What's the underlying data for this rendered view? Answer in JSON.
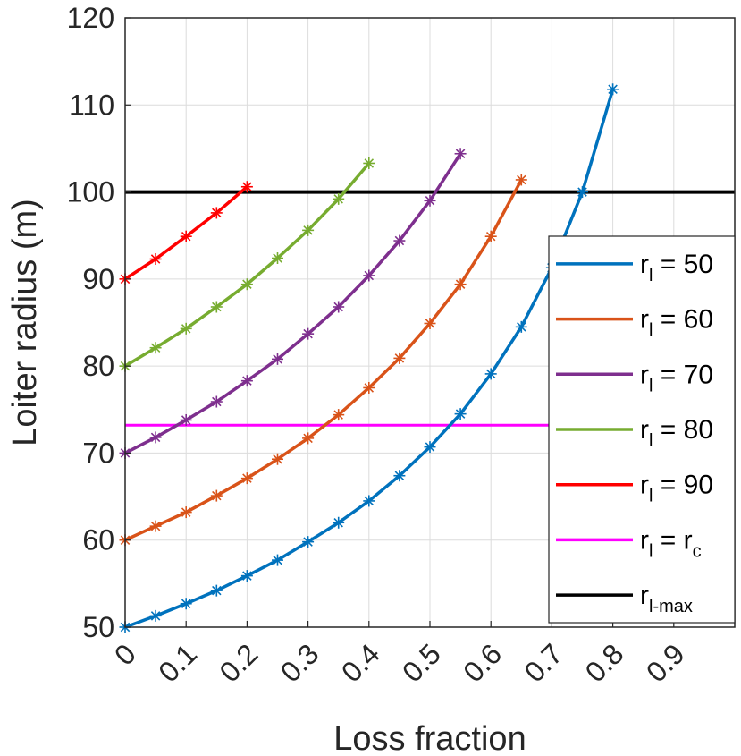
{
  "chart_data": {
    "type": "line",
    "xlabel": "Loss fraction",
    "ylabel": "Loiter radius (m)",
    "xlim": [
      0,
      1
    ],
    "ylim": [
      50,
      120
    ],
    "xticks": [
      "0",
      "0.1",
      "0.2",
      "0.3",
      "0.4",
      "0.5",
      "0.6",
      "0.7",
      "0.8",
      "0.9"
    ],
    "yticks": [
      "50",
      "60",
      "70",
      "80",
      "90",
      "100",
      "110",
      "120"
    ],
    "grid": true,
    "legend_position": "right",
    "marker": "asterisk",
    "series": [
      {
        "name": "r_l = 50",
        "legend_main": "r",
        "legend_sub": "l",
        "legend_rest": " = 50",
        "color": "#0072BD",
        "x": [
          0,
          0.05,
          0.1,
          0.15,
          0.2,
          0.25,
          0.3,
          0.35,
          0.4,
          0.45,
          0.5,
          0.55,
          0.6,
          0.65,
          0.7,
          0.75,
          0.8
        ],
        "y": [
          50,
          51.3,
          52.7,
          54.2,
          55.9,
          57.7,
          59.8,
          62.0,
          64.5,
          67.4,
          70.7,
          74.5,
          79.1,
          84.5,
          91.3,
          100.0,
          111.8
        ]
      },
      {
        "name": "r_l = 60",
        "legend_main": "r",
        "legend_sub": "l",
        "legend_rest": " = 60",
        "color": "#D95319",
        "x": [
          0,
          0.05,
          0.1,
          0.15,
          0.2,
          0.25,
          0.3,
          0.35,
          0.4,
          0.45,
          0.5,
          0.55,
          0.6,
          0.65
        ],
        "y": [
          60,
          61.6,
          63.2,
          65.1,
          67.1,
          69.3,
          71.7,
          74.4,
          77.5,
          80.9,
          84.9,
          89.4,
          94.9,
          101.4
        ]
      },
      {
        "name": "r_l = 70",
        "legend_main": "r",
        "legend_sub": "l",
        "legend_rest": " = 70",
        "color": "#7E2F8E",
        "x": [
          0,
          0.05,
          0.1,
          0.15,
          0.2,
          0.25,
          0.3,
          0.35,
          0.4,
          0.45,
          0.5,
          0.55
        ],
        "y": [
          70,
          71.8,
          73.8,
          75.9,
          78.3,
          80.8,
          83.7,
          86.8,
          90.4,
          94.4,
          99.0,
          104.4
        ]
      },
      {
        "name": "r_l = 80",
        "legend_main": "r",
        "legend_sub": "l",
        "legend_rest": " = 80",
        "color": "#77AC30",
        "x": [
          0,
          0.05,
          0.1,
          0.15,
          0.2,
          0.25,
          0.3,
          0.35,
          0.4
        ],
        "y": [
          80,
          82.1,
          84.3,
          86.8,
          89.4,
          92.4,
          95.6,
          99.2,
          103.3
        ]
      },
      {
        "name": "r_l = 90",
        "legend_main": "r",
        "legend_sub": "l",
        "legend_rest": " = 90",
        "color": "#FF0000",
        "x": [
          0,
          0.05,
          0.1,
          0.15,
          0.2
        ],
        "y": [
          90,
          92.3,
          94.9,
          97.6,
          100.6
        ]
      }
    ],
    "reference_lines": [
      {
        "name": "r_l = r_c",
        "legend_main": "r",
        "legend_sub": "l",
        "legend_rest": " = r",
        "legend_sub2": "c",
        "color": "#FF00FF",
        "y": 73.2
      },
      {
        "name": "r_l-max",
        "legend_main": "r",
        "legend_sub": "l-max",
        "legend_rest": "",
        "color": "#000000",
        "y": 100
      }
    ]
  }
}
